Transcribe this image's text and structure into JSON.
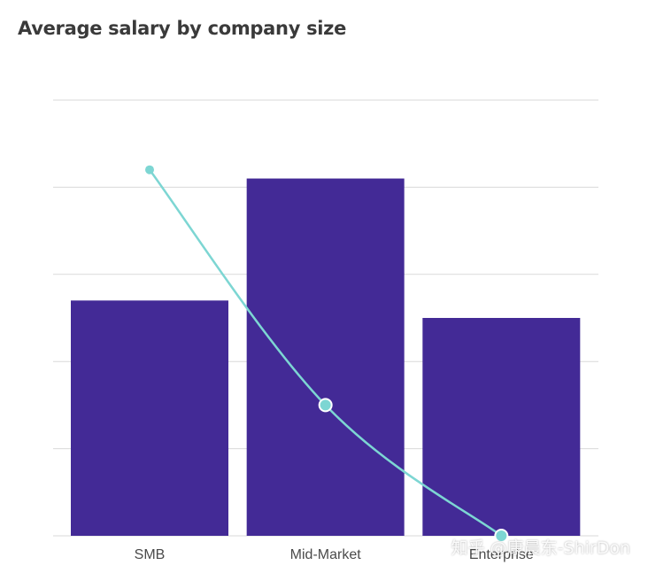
{
  "chart_data": {
    "type": "bar",
    "title": "Average salary by company size",
    "categories": [
      "SMB",
      "Mid-Market",
      "Enterprise"
    ],
    "series": [
      {
        "type": "bar",
        "values": [
          2.7,
          4.1,
          2.5
        ]
      },
      {
        "type": "line",
        "values": [
          4.2,
          1.5,
          0.0
        ]
      }
    ],
    "ylim": [
      0,
      5
    ],
    "grid": true,
    "xlabel": "",
    "ylabel": "",
    "colors": {
      "bar": "#432a96",
      "line": "#7dd6d3",
      "grid": "#d9d9d9",
      "title": "#3a3a3a"
    }
  },
  "watermark": "知乎 @康晨东-ShirDon"
}
